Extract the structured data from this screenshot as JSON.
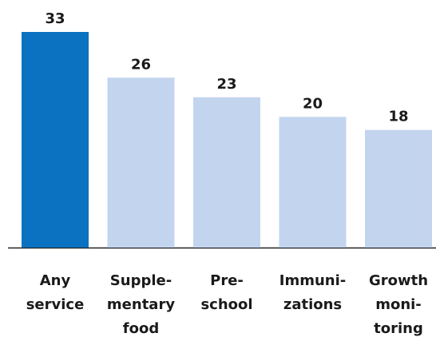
{
  "chart_data": {
    "type": "bar",
    "categories": [
      [
        "Any",
        "service"
      ],
      [
        "Supple-",
        "mentary",
        "food"
      ],
      [
        "Pre-",
        "school"
      ],
      [
        "Immuni-",
        "zations"
      ],
      [
        "Growth",
        "moni-",
        "toring"
      ]
    ],
    "values": [
      33,
      26,
      23,
      20,
      18
    ],
    "colors": [
      "#0a72c0",
      "#c3d4ee",
      "#c3d4ee",
      "#c3d4ee",
      "#c3d4ee"
    ]
  }
}
